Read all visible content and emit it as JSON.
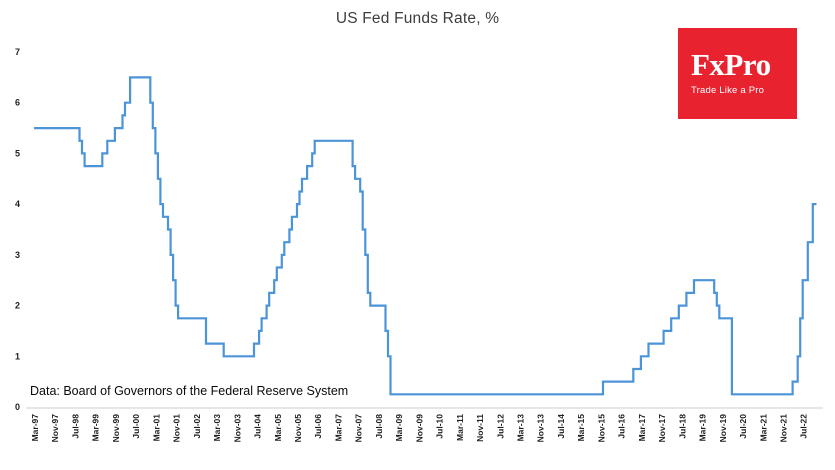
{
  "chart_data": {
    "type": "line",
    "title": "US Fed Funds Rate, %",
    "source_note": "Data: Board of Governors of the Federal Reserve System",
    "xlabel": "",
    "ylabel": "",
    "ylim": [
      0,
      7
    ],
    "y_ticks": [
      0,
      1,
      2,
      3,
      4,
      5,
      6,
      7
    ],
    "grid": false,
    "legend": "none",
    "x_start": "1997-03",
    "x_tick_step_months": 8,
    "x_tick_labels": [
      "Mar-97",
      "Nov-97",
      "Jul-98",
      "Mar-99",
      "Nov-99",
      "Jul-00",
      "Mar-01",
      "Nov-01",
      "Jul-02",
      "Mar-03",
      "Nov-03",
      "Jul-04",
      "Mar-05",
      "Nov-05",
      "Jul-06",
      "Mar-07",
      "Nov-07",
      "Jul-08",
      "Mar-09",
      "Nov-09",
      "Jul-10",
      "Mar-11",
      "Nov-11",
      "Jul-12",
      "Mar-13",
      "Nov-13",
      "Jul-14",
      "Mar-15",
      "Nov-15",
      "Jul-16",
      "Mar-17",
      "Nov-17",
      "Jul-18",
      "Mar-19",
      "Nov-19",
      "Jul-20",
      "Mar-21",
      "Nov-21",
      "Jul-22"
    ],
    "line_color": "#4C94D8",
    "series": [
      {
        "name": "US Fed Funds Rate (%)",
        "step": "post",
        "points": [
          [
            "1997-03",
            5.5
          ],
          [
            "1998-09",
            5.25
          ],
          [
            "1998-10",
            5.0
          ],
          [
            "1998-11",
            4.75
          ],
          [
            "1999-06",
            5.0
          ],
          [
            "1999-08",
            5.25
          ],
          [
            "1999-11",
            5.5
          ],
          [
            "2000-02",
            5.75
          ],
          [
            "2000-03",
            6.0
          ],
          [
            "2000-05",
            6.5
          ],
          [
            "2001-01",
            6.0
          ],
          [
            "2001-02",
            5.5
          ],
          [
            "2001-03",
            5.0
          ],
          [
            "2001-04",
            4.5
          ],
          [
            "2001-05",
            4.0
          ],
          [
            "2001-06",
            3.75
          ],
          [
            "2001-08",
            3.5
          ],
          [
            "2001-09",
            3.0
          ],
          [
            "2001-10",
            2.5
          ],
          [
            "2001-11",
            2.0
          ],
          [
            "2001-12",
            1.75
          ],
          [
            "2002-11",
            1.25
          ],
          [
            "2003-06",
            1.0
          ],
          [
            "2004-06",
            1.25
          ],
          [
            "2004-08",
            1.5
          ],
          [
            "2004-09",
            1.75
          ],
          [
            "2004-11",
            2.0
          ],
          [
            "2004-12",
            2.25
          ],
          [
            "2005-02",
            2.5
          ],
          [
            "2005-03",
            2.75
          ],
          [
            "2005-05",
            3.0
          ],
          [
            "2005-06",
            3.25
          ],
          [
            "2005-08",
            3.5
          ],
          [
            "2005-09",
            3.75
          ],
          [
            "2005-11",
            4.0
          ],
          [
            "2005-12",
            4.25
          ],
          [
            "2006-01",
            4.5
          ],
          [
            "2006-03",
            4.75
          ],
          [
            "2006-05",
            5.0
          ],
          [
            "2006-06",
            5.25
          ],
          [
            "2007-09",
            4.75
          ],
          [
            "2007-10",
            4.5
          ],
          [
            "2007-12",
            4.25
          ],
          [
            "2008-01",
            3.5
          ],
          [
            "2008-02",
            3.0
          ],
          [
            "2008-03",
            2.25
          ],
          [
            "2008-04",
            2.0
          ],
          [
            "2008-10",
            1.5
          ],
          [
            "2008-11",
            1.0
          ],
          [
            "2008-12",
            0.25
          ],
          [
            "2015-12",
            0.5
          ],
          [
            "2016-12",
            0.75
          ],
          [
            "2017-03",
            1.0
          ],
          [
            "2017-06",
            1.25
          ],
          [
            "2017-12",
            1.5
          ],
          [
            "2018-03",
            1.75
          ],
          [
            "2018-06",
            2.0
          ],
          [
            "2018-09",
            2.25
          ],
          [
            "2018-12",
            2.5
          ],
          [
            "2019-08",
            2.25
          ],
          [
            "2019-09",
            2.0
          ],
          [
            "2019-10",
            1.75
          ],
          [
            "2020-03",
            0.25
          ],
          [
            "2022-03",
            0.5
          ],
          [
            "2022-05",
            1.0
          ],
          [
            "2022-06",
            1.75
          ],
          [
            "2022-07",
            2.5
          ],
          [
            "2022-09",
            3.25
          ],
          [
            "2022-11",
            4.0
          ]
        ]
      }
    ]
  },
  "logo": {
    "name": "FxPro",
    "tagline": "Trade Like a Pro",
    "bg_color": "#E8232F",
    "text_color": "#ffffff"
  }
}
